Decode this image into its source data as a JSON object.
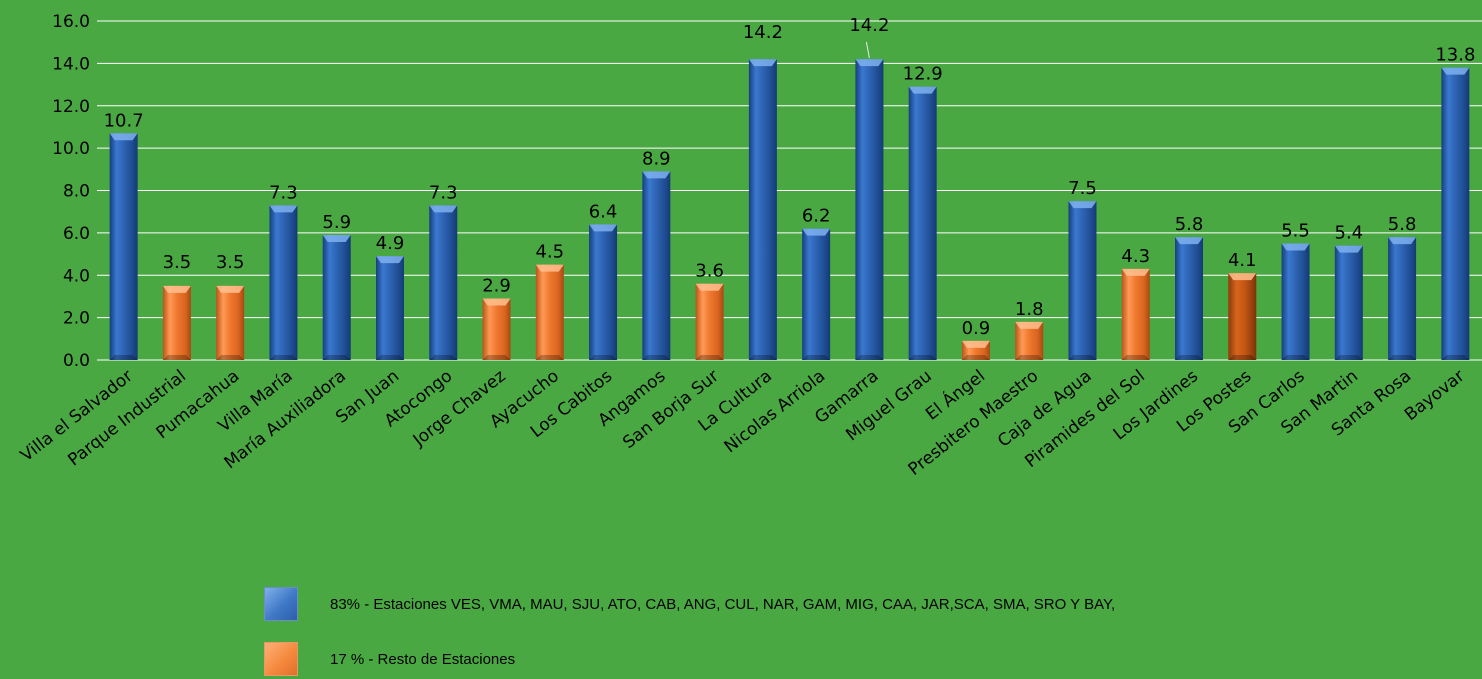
{
  "chart_data": {
    "type": "bar",
    "categories": [
      "Villa el Salvador",
      "Parque Industrial",
      "Pumacahua",
      "Villa María",
      "María Auxiliadora",
      "San Juan",
      "Atocongo",
      "Jorge Chavez",
      "Ayacucho",
      "Los Cabitos",
      "Angamos",
      "San Borja Sur",
      "La Cultura",
      "Nicolas Arriola",
      "Gamarra",
      "Miguel Grau",
      "El Ángel",
      "Presbitero Maestro",
      "Caja de Agua",
      "Piramides del Sol",
      "Los Jardines",
      "Los Postes",
      "San Carlos",
      "San Martin",
      "Santa Rosa",
      "Bayovar"
    ],
    "values": [
      10.7,
      3.5,
      3.5,
      7.3,
      5.9,
      4.9,
      7.3,
      2.9,
      4.5,
      6.4,
      8.9,
      3.6,
      14.2,
      6.2,
      14.2,
      12.9,
      0.9,
      1.8,
      7.5,
      4.3,
      5.8,
      4.1,
      5.5,
      5.4,
      5.8,
      13.8
    ],
    "value_labels": [
      "10.7",
      "3.5",
      "3.5",
      "7.3",
      "5.9",
      "4.9",
      "7.3",
      "2.9",
      "4.5",
      "6.4",
      "8.9",
      "3.6",
      "14.2",
      "6.2",
      "14.2",
      "12.9",
      "0.9",
      "1.8",
      "7.5",
      "4.3",
      "5.8",
      "4.1",
      "5.5",
      "5.4",
      "5.8",
      "13.8"
    ],
    "groups": [
      "blue",
      "orange",
      "orange",
      "blue",
      "blue",
      "blue",
      "blue",
      "orange",
      "orange",
      "blue",
      "blue",
      "orange",
      "blue",
      "blue",
      "blue",
      "blue",
      "orange",
      "orange",
      "blue",
      "orange",
      "blue",
      "orange",
      "blue",
      "blue",
      "blue",
      "blue"
    ],
    "ylim": [
      0,
      16
    ],
    "yticks": [
      "0.0",
      "2.0",
      "4.0",
      "6.0",
      "8.0",
      "10.0",
      "12.0",
      "14.0",
      "16.0"
    ],
    "grid": true,
    "colors": {
      "blue": "#2e64b3",
      "orange": "#f0782f",
      "dark_orange": "#c85a14",
      "grid": "#ffffff"
    },
    "legend": {
      "placement": "bottom",
      "entries": [
        {
          "color": "blue",
          "label": "83% - Estaciones VES, VMA, MAU, SJU, ATO, CAB, ANG, CUL, NAR, GAM, MIG, CAA, JAR,SCA, SMA, SRO Y BAY,"
        },
        {
          "color": "orange",
          "label": "17 % - Resto de Estaciones"
        }
      ]
    }
  }
}
